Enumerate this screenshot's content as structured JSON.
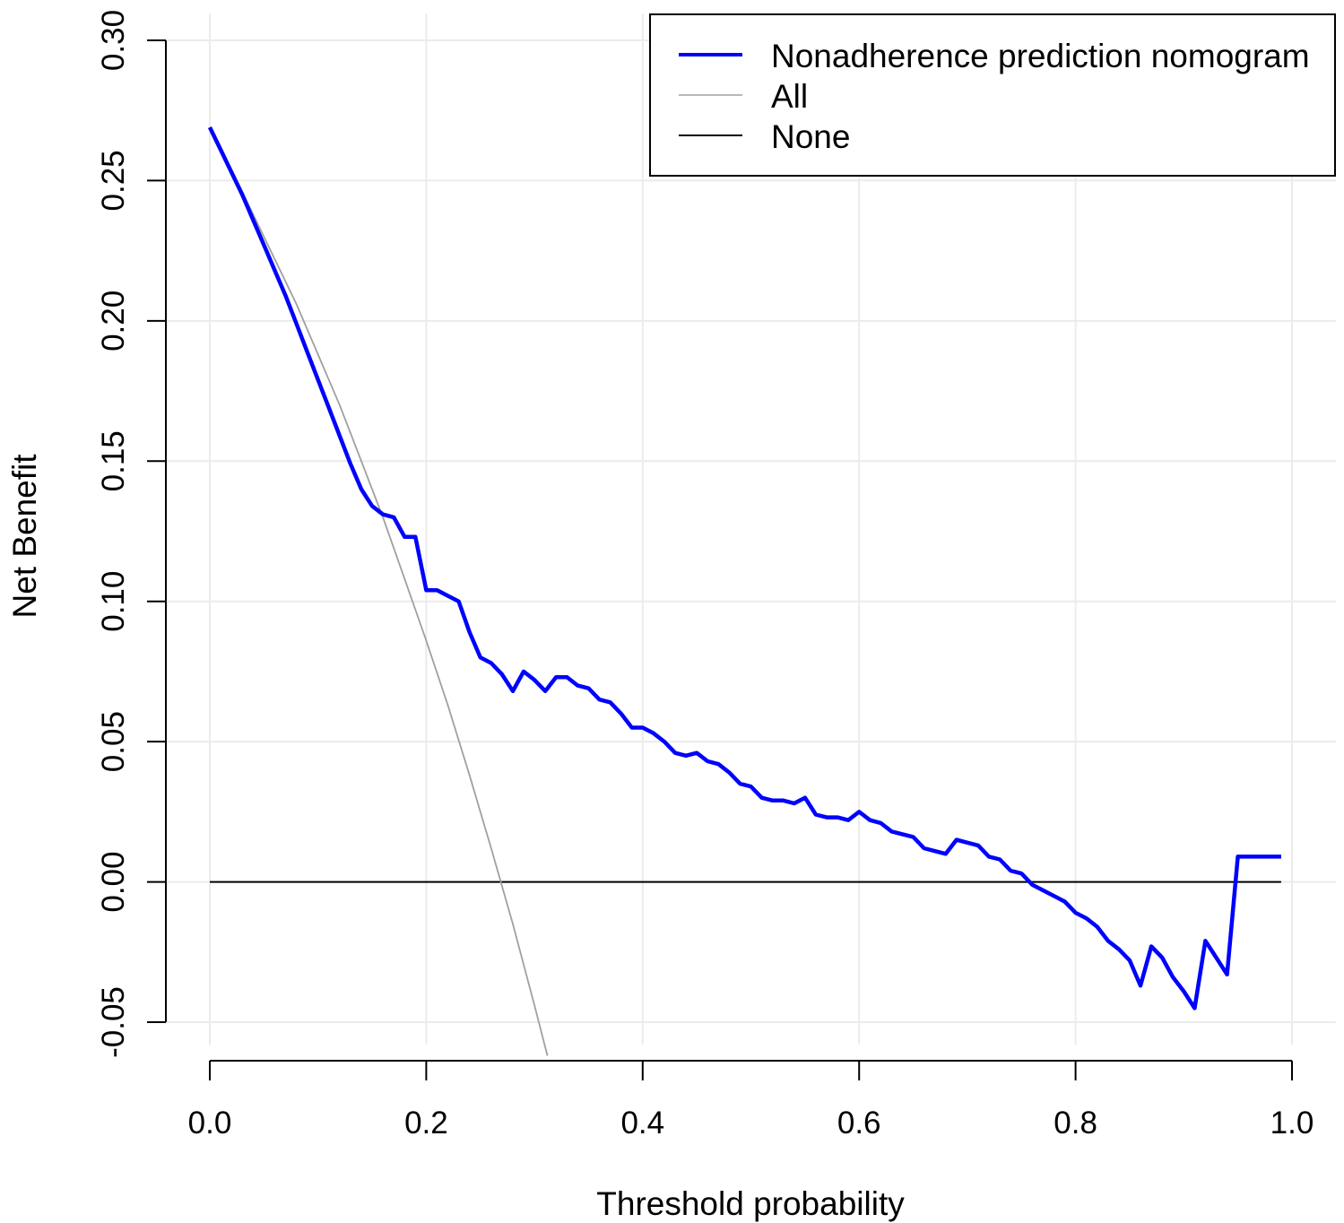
{
  "chart_data": {
    "type": "line",
    "xlabel": "Threshold probability",
    "ylabel": "Net Benefit",
    "xlim": [
      0.0,
      1.0
    ],
    "ylim": [
      -0.05,
      0.3
    ],
    "x_ticks": [
      "0.0",
      "0.2",
      "0.4",
      "0.6",
      "0.8",
      "1.0"
    ],
    "y_ticks": [
      "-0.05",
      "0.00",
      "0.05",
      "0.10",
      "0.15",
      "0.20",
      "0.25",
      "0.30"
    ],
    "grid": true,
    "legend_position": "top-right",
    "series": [
      {
        "name": "Nonadherence prediction nomogram",
        "color": "#0000ff",
        "x": [
          0.0,
          0.01,
          0.02,
          0.03,
          0.04,
          0.05,
          0.06,
          0.07,
          0.08,
          0.09,
          0.1,
          0.11,
          0.12,
          0.13,
          0.14,
          0.15,
          0.16,
          0.17,
          0.18,
          0.19,
          0.2,
          0.21,
          0.22,
          0.23,
          0.24,
          0.25,
          0.26,
          0.27,
          0.28,
          0.29,
          0.3,
          0.31,
          0.32,
          0.33,
          0.34,
          0.35,
          0.36,
          0.37,
          0.38,
          0.39,
          0.4,
          0.41,
          0.42,
          0.43,
          0.44,
          0.45,
          0.46,
          0.47,
          0.48,
          0.49,
          0.5,
          0.51,
          0.52,
          0.53,
          0.54,
          0.55,
          0.56,
          0.57,
          0.58,
          0.59,
          0.6,
          0.61,
          0.62,
          0.63,
          0.64,
          0.65,
          0.66,
          0.67,
          0.68,
          0.69,
          0.7,
          0.71,
          0.72,
          0.73,
          0.74,
          0.75,
          0.76,
          0.77,
          0.78,
          0.79,
          0.8,
          0.81,
          0.82,
          0.83,
          0.84,
          0.85,
          0.86,
          0.87,
          0.88,
          0.89,
          0.9,
          0.91,
          0.92,
          0.93,
          0.94,
          0.95,
          0.96,
          0.97,
          0.98,
          0.99
        ],
        "y": [
          0.269,
          0.261,
          0.253,
          0.245,
          0.236,
          0.227,
          0.218,
          0.209,
          0.199,
          0.189,
          0.179,
          0.169,
          0.159,
          0.149,
          0.14,
          0.134,
          0.131,
          0.13,
          0.123,
          0.123,
          0.104,
          0.104,
          0.102,
          0.1,
          0.089,
          0.08,
          0.078,
          0.074,
          0.068,
          0.075,
          0.072,
          0.068,
          0.073,
          0.073,
          0.07,
          0.069,
          0.065,
          0.064,
          0.06,
          0.055,
          0.055,
          0.053,
          0.05,
          0.046,
          0.045,
          0.046,
          0.043,
          0.042,
          0.039,
          0.035,
          0.034,
          0.03,
          0.029,
          0.029,
          0.028,
          0.03,
          0.024,
          0.023,
          0.023,
          0.022,
          0.025,
          0.022,
          0.021,
          0.018,
          0.017,
          0.016,
          0.012,
          0.011,
          0.01,
          0.015,
          0.014,
          0.013,
          0.009,
          0.008,
          0.004,
          0.003,
          -0.001,
          -0.003,
          -0.005,
          -0.007,
          -0.011,
          -0.013,
          -0.016,
          -0.021,
          -0.024,
          -0.028,
          -0.037,
          -0.023,
          -0.027,
          -0.034,
          -0.039,
          -0.045,
          -0.021,
          -0.027,
          -0.033,
          0.009,
          0.009,
          0.009,
          0.009,
          0.009
        ]
      },
      {
        "name": "All",
        "color": "#a0a0a0",
        "x": [
          0.0,
          0.02,
          0.04,
          0.06,
          0.08,
          0.1,
          0.12,
          0.14,
          0.16,
          0.18,
          0.2,
          0.22,
          0.24,
          0.26,
          0.28,
          0.3,
          0.312
        ],
        "y": [
          0.269,
          0.254,
          0.238,
          0.222,
          0.206,
          0.188,
          0.17,
          0.15,
          0.13,
          0.108,
          0.086,
          0.063,
          0.038,
          0.012,
          -0.015,
          -0.044,
          -0.062
        ]
      },
      {
        "name": "None",
        "color": "#000000",
        "x": [
          0.0,
          0.99
        ],
        "y": [
          0.0,
          0.0
        ]
      }
    ]
  }
}
